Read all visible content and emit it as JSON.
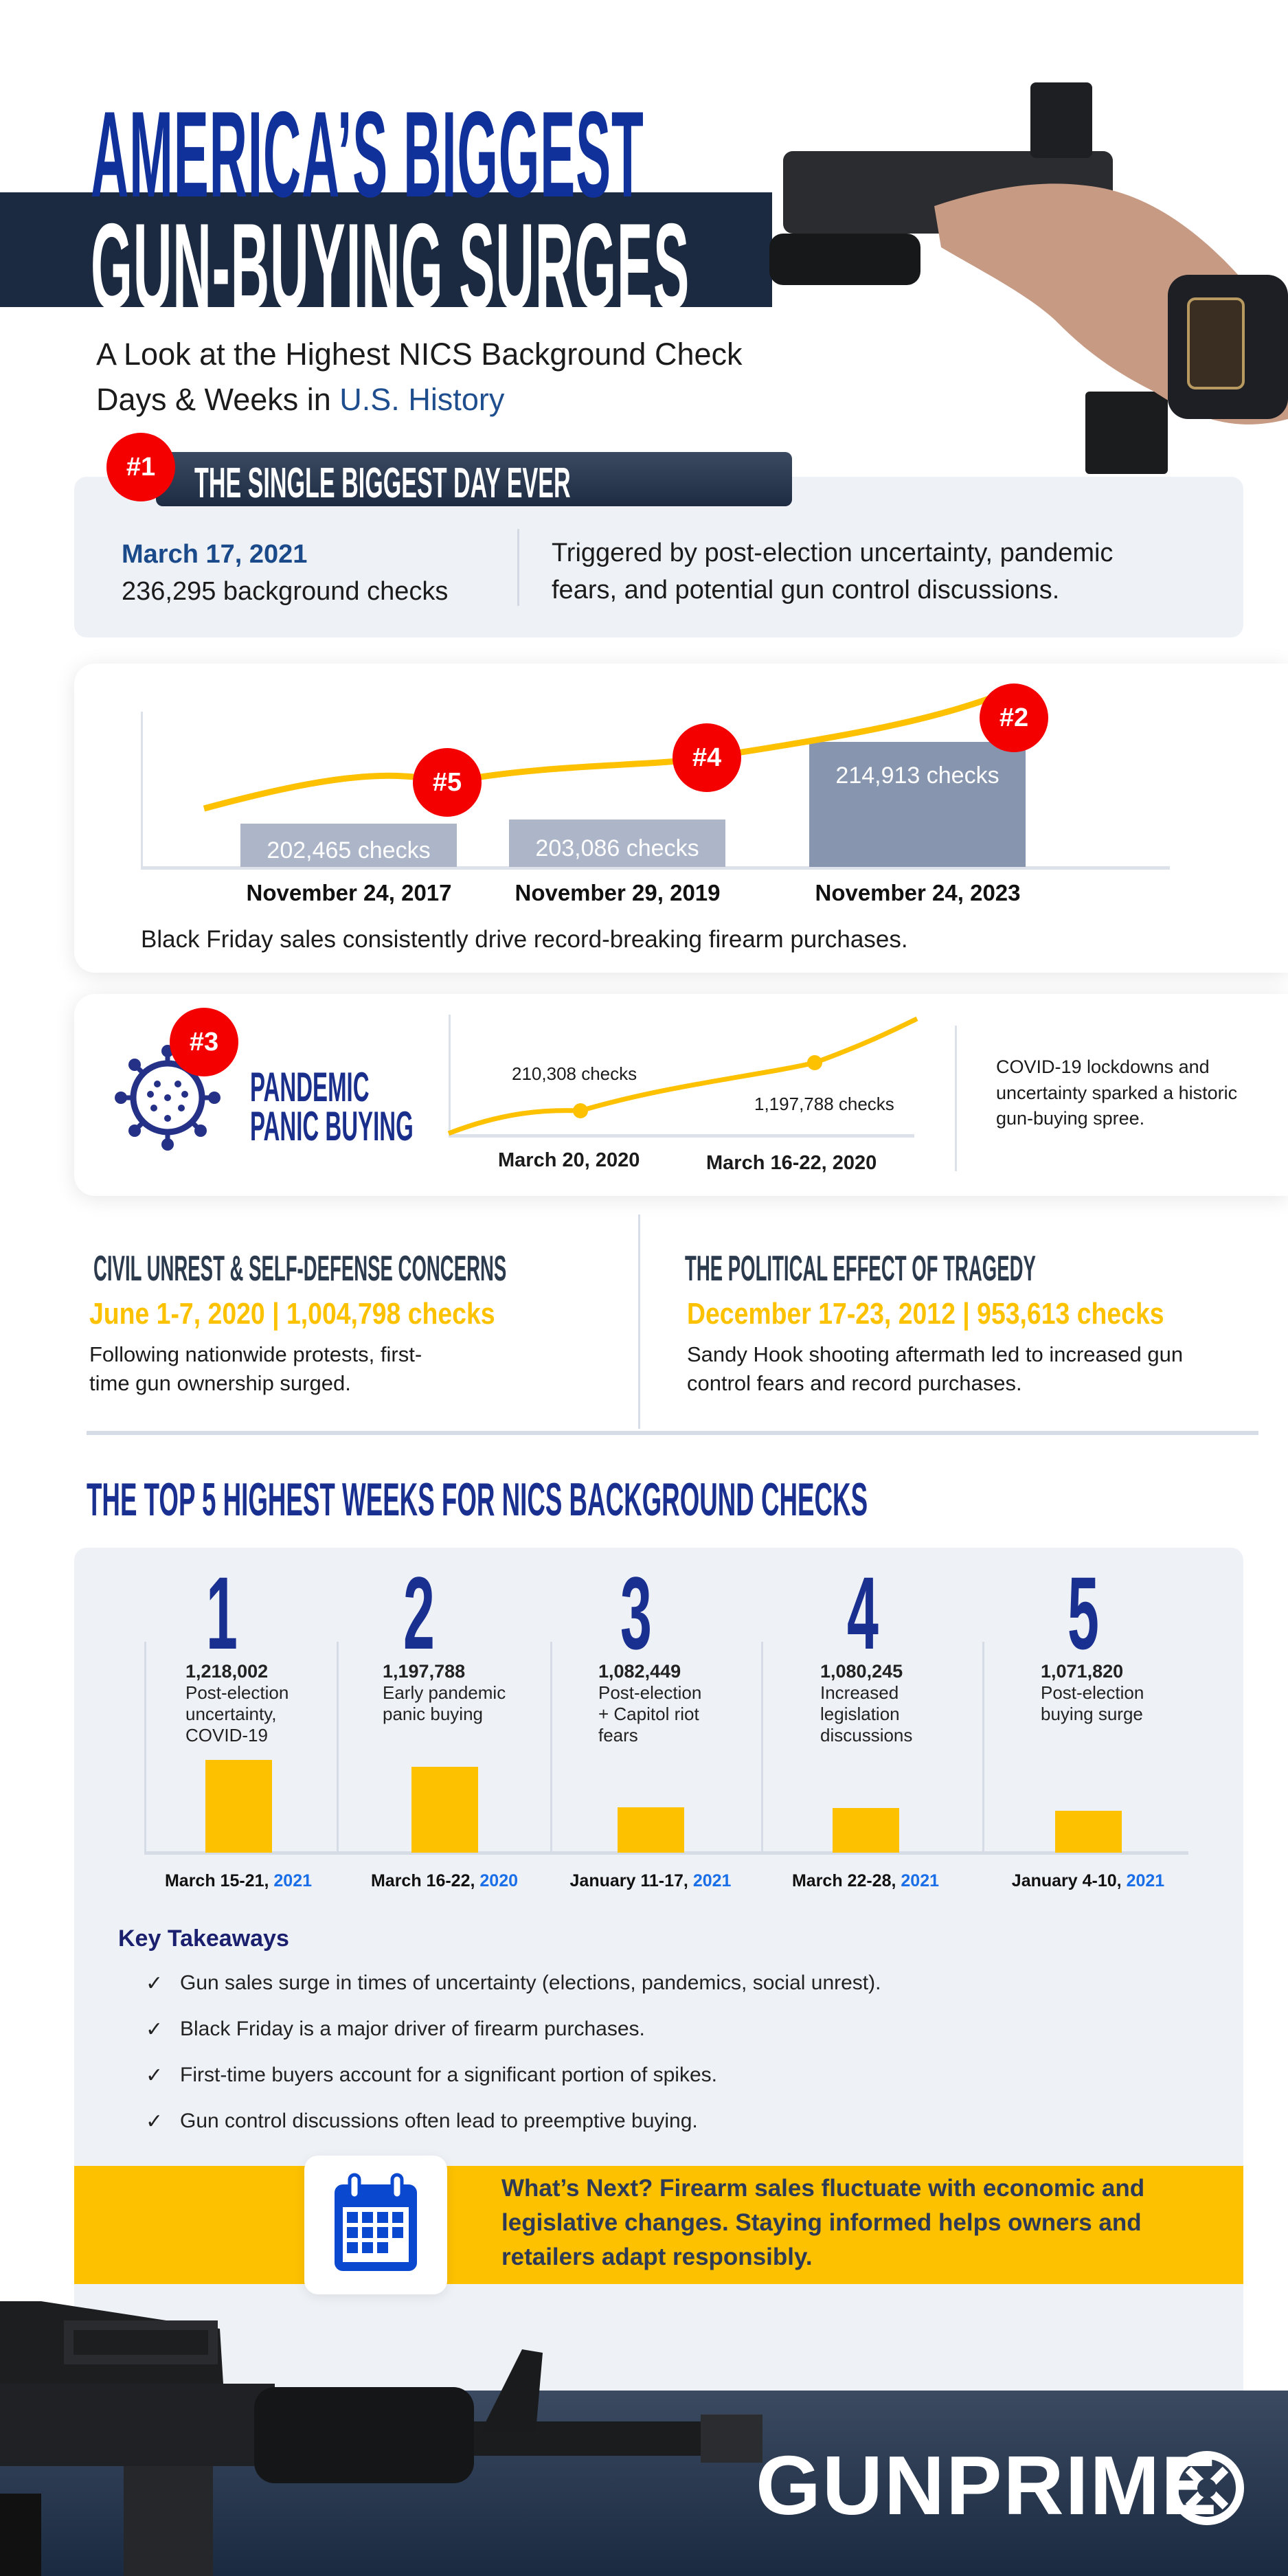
{
  "header": {
    "title_line1": "AMERICA’S BIGGEST",
    "title_line2": "GUN-BUYING SURGES",
    "subtitle_line1": "A Look at the Highest NICS Background Check",
    "subtitle_line2_prefix": "Days & Weeks in ",
    "subtitle_line2_highlight": "U.S. History"
  },
  "biggest_day": {
    "rank": "#1",
    "heading": "THE SINGLE BIGGEST DAY EVER",
    "date": "March 17, 2021",
    "checks": "236,295 background checks",
    "description_line1": "Triggered by post-election uncertainty, pandemic",
    "description_line2": "fears, and potential gun control discussions."
  },
  "black_friday": {
    "chart_data": {
      "type": "bar",
      "categories": [
        "November 24, 2017",
        "November 29, 2019",
        "November 24, 2023"
      ],
      "values": [
        202465,
        203086,
        214913
      ],
      "ranks": [
        "#5",
        "#4",
        "#2"
      ],
      "labels": [
        "202,465  checks",
        "203,086 checks",
        "214,913 checks"
      ]
    },
    "caption": "Black Friday sales consistently drive record-breaking firearm purchases."
  },
  "pandemic": {
    "rank": "#3",
    "title_line1": "PANDEMIC",
    "title_line2": "PANIC BUYING",
    "chart_data": {
      "type": "line",
      "points": [
        {
          "label": "March 20, 2020",
          "value_label": "210,308 checks"
        },
        {
          "label": "March 16-22, 2020",
          "value_label": "1,197,788 checks"
        }
      ]
    },
    "description_lines": [
      "COVID-19 lockdowns and",
      "uncertainty sparked a historic",
      "gun-buying spree."
    ]
  },
  "civil_unrest": {
    "heading": "CIVIL UNREST & SELF-DEFENSE CONCERNS",
    "stat": "June 1-7, 2020 | 1,004,798 checks",
    "body_line1": "Following nationwide protests, first-",
    "body_line2": "time gun ownership surged."
  },
  "tragedy": {
    "heading": "THE POLITICAL EFFECT OF TRAGEDY",
    "stat": "December 17-23, 2012 | 953,613 checks",
    "body_line1": "Sandy Hook shooting aftermath led to increased gun",
    "body_line2": "control fears and record purchases."
  },
  "top5": {
    "heading": "THE TOP 5 HIGHEST WEEKS FOR NICS BACKGROUND CHECKS",
    "chart_data": {
      "type": "bar",
      "bar_color": "#fdc100",
      "weeks": [
        {
          "rank": "1",
          "value": 1218002,
          "value_label": "1,218,002",
          "desc": [
            "Post-election",
            "uncertainty,",
            "COVID-19"
          ],
          "date": "March 15-21, ",
          "year": "2021"
        },
        {
          "rank": "2",
          "value": 1197788,
          "value_label": "1,197,788",
          "desc": [
            "Early pandemic",
            "panic buying"
          ],
          "date": "March 16-22, ",
          "year": "2020"
        },
        {
          "rank": "3",
          "value": 1082449,
          "value_label": "1,082,449",
          "desc": [
            "Post-election",
            "+ Capitol riot",
            "fears"
          ],
          "date": "January 11-17, ",
          "year": "2021"
        },
        {
          "rank": "4",
          "value": 1080245,
          "value_label": "1,080,245",
          "desc": [
            "Increased",
            "legislation",
            "discussions"
          ],
          "date": "March 22-28, ",
          "year": "2021"
        },
        {
          "rank": "5",
          "value": 1071820,
          "value_label": "1,071,820",
          "desc": [
            "Post-election",
            "buying surge"
          ],
          "date": "January 4-10, ",
          "year": "2021"
        }
      ]
    }
  },
  "takeaways": {
    "heading": "Key Takeaways",
    "check_icon": "✓",
    "items": [
      "Gun sales surge in times of uncertainty (elections, pandemics, social unrest).",
      "Black Friday is a major driver of firearm purchases.",
      "First-time buyers account for a significant portion of spikes.",
      "Gun control discussions often lead to preemptive buying."
    ]
  },
  "whats_next": {
    "icon": "calendar-icon",
    "lines": [
      "What’s Next? Firearm sales fluctuate with economic and",
      "legislative changes. Staying informed helps owners and",
      "retailers adapt responsibly."
    ]
  },
  "footer": {
    "logo": "GUNPRIME"
  },
  "colors": {
    "navy": "#1b2a40",
    "blue": "#10309a",
    "yellow": "#fdc100",
    "red": "#f40000",
    "accent_year": "#1a6ee8"
  }
}
